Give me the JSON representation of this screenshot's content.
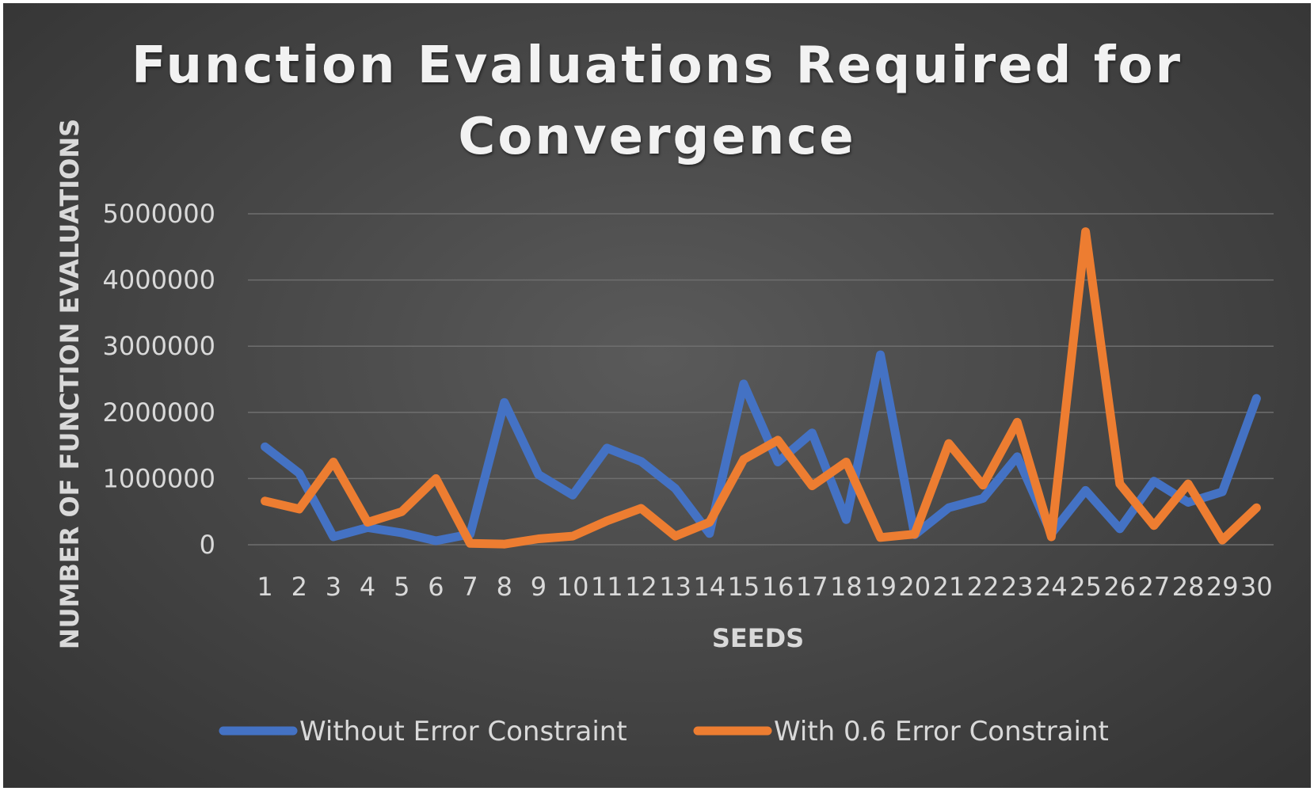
{
  "chart_data": {
    "type": "line",
    "title_lines": [
      "Function Evaluations Required for",
      "Convergence"
    ],
    "xlabel": "SEEDS",
    "ylabel": "NUMBER OF FUNCTION EVALUATIONS",
    "ylim": [
      0,
      5000000
    ],
    "y_ticks": [
      "0",
      "1000000",
      "2000000",
      "3000000",
      "4000000",
      "5000000"
    ],
    "y_tick_values": [
      0,
      1000000,
      2000000,
      3000000,
      4000000,
      5000000
    ],
    "grid": true,
    "legend_position": "bottom",
    "categories": [
      "1",
      "2",
      "3",
      "4",
      "5",
      "6",
      "7",
      "8",
      "9",
      "10",
      "11",
      "12",
      "13",
      "14",
      "15",
      "16",
      "17",
      "18",
      "19",
      "20",
      "21",
      "22",
      "23",
      "24",
      "25",
      "26",
      "27",
      "28",
      "29",
      "30"
    ],
    "series": [
      {
        "name": "Without Error Constraint",
        "color": "#4472c4",
        "values": [
          1480000,
          1080000,
          120000,
          260000,
          180000,
          60000,
          160000,
          2150000,
          1060000,
          750000,
          1460000,
          1260000,
          850000,
          170000,
          2430000,
          1250000,
          1690000,
          380000,
          2870000,
          150000,
          560000,
          700000,
          1330000,
          170000,
          820000,
          240000,
          960000,
          640000,
          800000,
          2210000
        ]
      },
      {
        "name": "With 0.6 Error Constraint",
        "color": "#ed7d31",
        "values": [
          660000,
          540000,
          1250000,
          340000,
          500000,
          1000000,
          20000,
          10000,
          90000,
          130000,
          360000,
          550000,
          130000,
          340000,
          1290000,
          1580000,
          890000,
          1250000,
          110000,
          160000,
          1530000,
          900000,
          1850000,
          120000,
          4730000,
          920000,
          290000,
          920000,
          70000,
          560000
        ]
      }
    ]
  }
}
